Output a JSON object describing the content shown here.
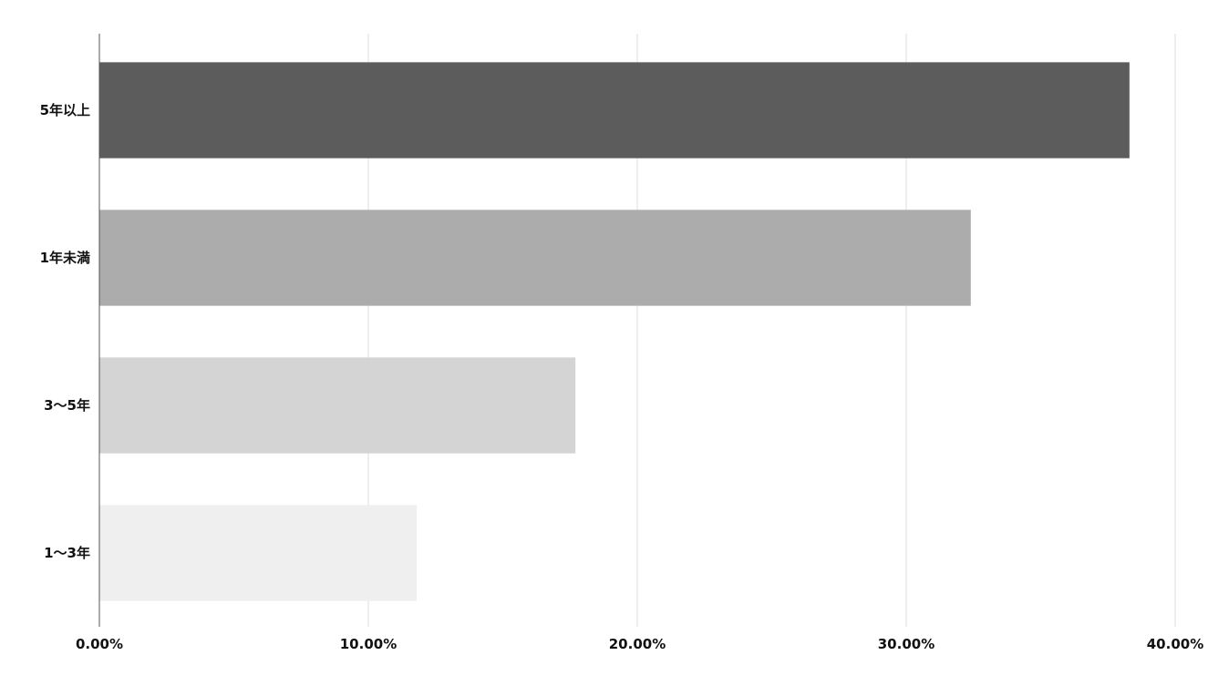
{
  "chart_data": {
    "type": "bar",
    "orientation": "horizontal",
    "title": "",
    "xlabel": "",
    "ylabel": "",
    "xlim": [
      0,
      40
    ],
    "x_ticks": [
      "0.00%",
      "10.00%",
      "20.00%",
      "30.00%",
      "40.00%"
    ],
    "grid": true,
    "legend": "none",
    "categories": [
      "5年以上",
      "1年未満",
      "3〜5年",
      "1〜3年"
    ],
    "values": [
      38.3,
      32.4,
      17.7,
      11.8
    ],
    "colors": [
      "#5c5c5c",
      "#acacac",
      "#d4d4d4",
      "#efefef"
    ]
  }
}
